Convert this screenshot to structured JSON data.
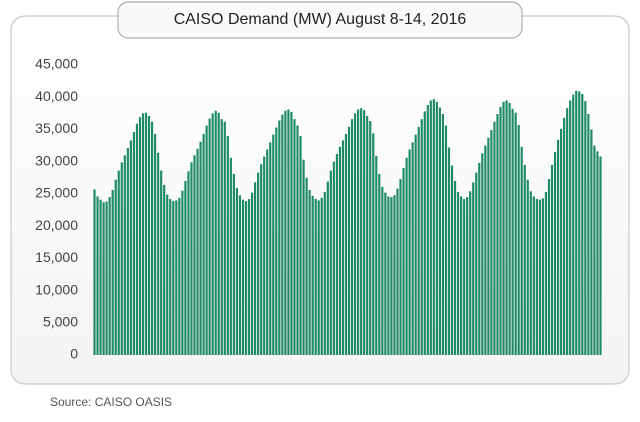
{
  "chart_data": {
    "type": "bar",
    "title": "CAISO Demand (MW) August 8-14, 2016",
    "source": "Source: CAISO OASIS",
    "color": "#1e8a68",
    "values": [
      25700,
      24600,
      24100,
      23700,
      23800,
      24500,
      25600,
      27200,
      28600,
      29900,
      31000,
      32100,
      33300,
      34600,
      35900,
      36900,
      37500,
      37600,
      37100,
      36200,
      34300,
      31400,
      28600,
      26400,
      24900,
      24200,
      23900,
      24000,
      24400,
      25500,
      27000,
      28500,
      29900,
      31000,
      32000,
      33100,
      34300,
      35600,
      36700,
      37500,
      37900,
      37600,
      36600,
      36200,
      34000,
      30600,
      28100,
      25900,
      24800,
      24100,
      23900,
      24200,
      25200,
      26800,
      28300,
      29600,
      30800,
      31900,
      33000,
      34200,
      35300,
      36400,
      37300,
      37900,
      38100,
      37700,
      36600,
      35600,
      34000,
      30300,
      27500,
      25600,
      24700,
      24200,
      24000,
      24400,
      25300,
      26900,
      28600,
      30000,
      31200,
      32300,
      33300,
      34300,
      35400,
      36600,
      37500,
      38100,
      38300,
      38000,
      37100,
      36300,
      34400,
      30900,
      28100,
      26100,
      25200,
      24600,
      24500,
      24800,
      25800,
      27300,
      29000,
      30600,
      31900,
      33000,
      34200,
      35400,
      36600,
      37800,
      38800,
      39500,
      39700,
      39300,
      38400,
      37400,
      35600,
      32200,
      29400,
      27000,
      25300,
      24600,
      24200,
      24500,
      25400,
      26800,
      28300,
      29800,
      31300,
      32500,
      33700,
      34900,
      36200,
      37400,
      38500,
      39300,
      39500,
      39100,
      38200,
      37600,
      35700,
      32300,
      29500,
      27200,
      25400,
      24600,
      24200,
      24100,
      24300,
      25300,
      27300,
      29500,
      31500,
      33400,
      35100,
      36800,
      38300,
      39500,
      40400,
      41000,
      40900,
      40500,
      39400,
      37400,
      35000,
      32500,
      31600,
      30800
    ],
    "ylim": [
      0,
      45000
    ],
    "yticks": [
      0,
      {
        "value": 5000,
        "label": "5,000"
      },
      {
        "value": 10000,
        "label": "10,000"
      },
      {
        "value": 15000,
        "label": "15,000"
      },
      {
        "value": 20000,
        "label": "20,000"
      },
      {
        "value": 25000,
        "label": "25,000"
      },
      {
        "value": 30000,
        "label": "30,000"
      },
      {
        "value": 35000,
        "label": "35,000"
      },
      {
        "value": 40000,
        "label": "40,000"
      },
      {
        "value": 45000,
        "label": "45,000"
      }
    ]
  }
}
